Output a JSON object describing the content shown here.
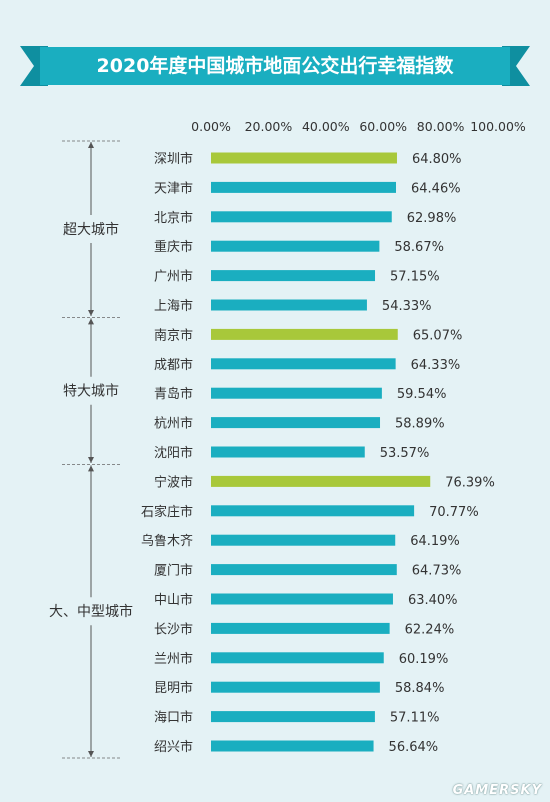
{
  "chart_data": {
    "type": "bar",
    "orientation": "horizontal",
    "title": "2020年度中国城市地面公交出行幸福指数",
    "xlim": [
      0,
      100
    ],
    "x_ticks": [
      "0.00%",
      "20.00%",
      "40.00%",
      "60.00%",
      "80.00%",
      "100.00%"
    ],
    "grid": false,
    "colors": {
      "bar": "#1aaec0",
      "highlight": "#a8c83a",
      "title_bg": "#1aaec0",
      "text": "#333333"
    },
    "groups": [
      {
        "label": "超大城市",
        "items": [
          {
            "city": "深圳市",
            "value": 64.8,
            "label": "64.80%",
            "highlight": true
          },
          {
            "city": "天津市",
            "value": 64.46,
            "label": "64.46%"
          },
          {
            "city": "北京市",
            "value": 62.98,
            "label": "62.98%"
          },
          {
            "city": "重庆市",
            "value": 58.67,
            "label": "58.67%"
          },
          {
            "city": "广州市",
            "value": 57.15,
            "label": "57.15%"
          },
          {
            "city": "上海市",
            "value": 54.33,
            "label": "54.33%"
          }
        ]
      },
      {
        "label": "特大城市",
        "items": [
          {
            "city": "南京市",
            "value": 65.07,
            "label": "65.07%",
            "highlight": true
          },
          {
            "city": "成都市",
            "value": 64.33,
            "label": "64.33%"
          },
          {
            "city": "青岛市",
            "value": 59.54,
            "label": "59.54%"
          },
          {
            "city": "杭州市",
            "value": 58.89,
            "label": "58.89%"
          },
          {
            "city": "沈阳市",
            "value": 53.57,
            "label": "53.57%"
          }
        ]
      },
      {
        "label": "大、中型城市",
        "items": [
          {
            "city": "宁波市",
            "value": 76.39,
            "label": "76.39%",
            "highlight": true
          },
          {
            "city": "石家庄市",
            "value": 70.77,
            "label": "70.77%"
          },
          {
            "city": "乌鲁木齐",
            "value": 64.19,
            "label": "64.19%"
          },
          {
            "city": "厦门市",
            "value": 64.73,
            "label": "64.73%"
          },
          {
            "city": "中山市",
            "value": 63.4,
            "label": "63.40%"
          },
          {
            "city": "长沙市",
            "value": 62.24,
            "label": "62.24%"
          },
          {
            "city": "兰州市",
            "value": 60.19,
            "label": "60.19%"
          },
          {
            "city": "昆明市",
            "value": 58.84,
            "label": "58.84%"
          },
          {
            "city": "海口市",
            "value": 57.11,
            "label": "57.11%"
          },
          {
            "city": "绍兴市",
            "value": 56.64,
            "label": "56.64%"
          }
        ]
      }
    ]
  },
  "watermark": "GAMERSKY"
}
